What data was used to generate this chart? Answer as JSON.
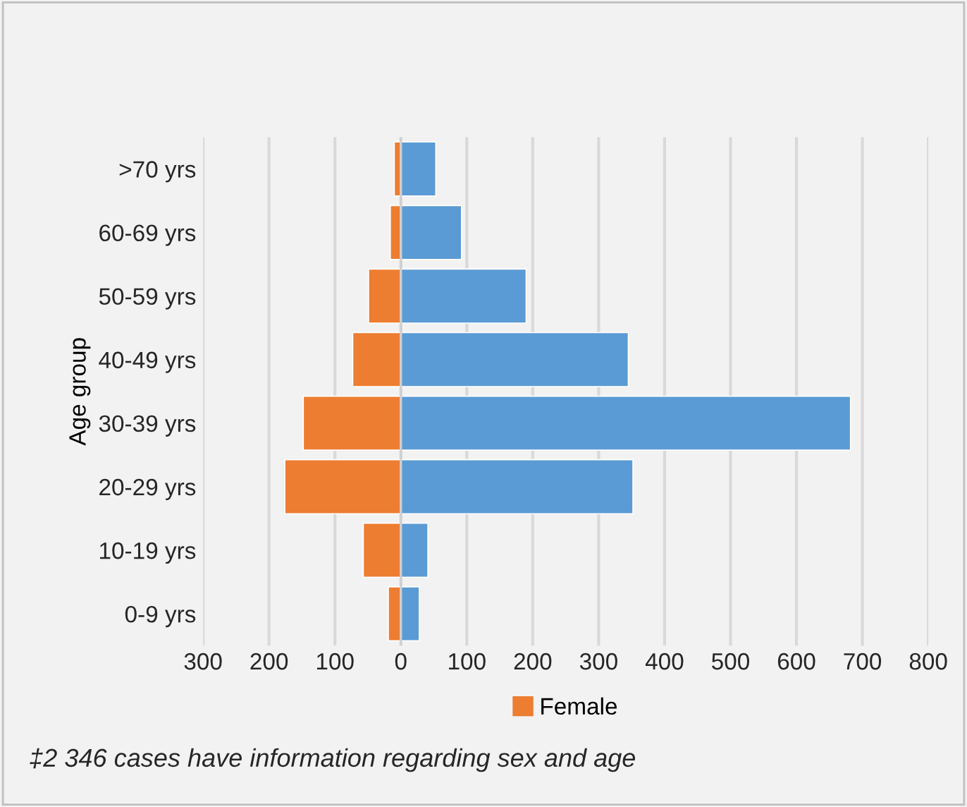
{
  "chart_data": {
    "type": "bar",
    "orientation": "horizontal",
    "stacked": true,
    "ylabel": "Age group",
    "categories": [
      ">70 yrs",
      "60-69 yrs",
      "50-59 yrs",
      "40-49 yrs",
      "30-39 yrs",
      "20-29 yrs",
      "10-19 yrs",
      "0-9 yrs"
    ],
    "series": [
      {
        "name": "Female",
        "color": "#ed7d31",
        "values": [
          -10,
          -16,
          -49,
          -73,
          -148,
          -176,
          -57,
          -19
        ]
      },
      {
        "color": "#5b9bd5",
        "values": [
          53,
          92,
          190,
          345,
          682,
          352,
          41,
          28
        ]
      }
    ],
    "xlim": [
      -300,
      800
    ],
    "xticks": [
      {
        "value": -300,
        "label": "300"
      },
      {
        "value": -200,
        "label": "200"
      },
      {
        "value": -100,
        "label": "100"
      },
      0,
      100,
      200,
      300,
      400,
      500,
      600,
      700,
      800
    ],
    "grid": "x",
    "legend": "bottom",
    "annotations": [
      "‡2 346 cases have information regarding sex and age"
    ]
  }
}
